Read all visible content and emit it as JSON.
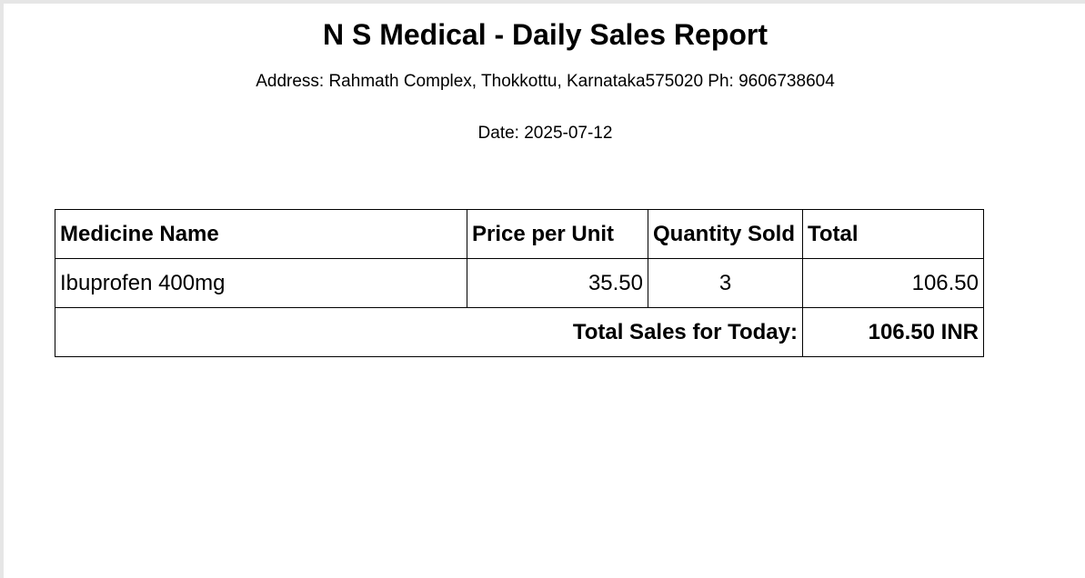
{
  "report": {
    "title": "N S Medical - Daily Sales Report",
    "address": "Address: Rahmath Complex, Thokkottu, Karnataka575020 Ph: 9606738604",
    "date": "Date: 2025-07-12"
  },
  "table": {
    "headers": [
      "Medicine Name",
      "Price per Unit",
      "Quantity Sold",
      "Total"
    ],
    "rows": [
      {
        "name": "Ibuprofen 400mg",
        "price": "35.50",
        "quantity": "3",
        "total": "106.50"
      }
    ],
    "footer": {
      "label": "Total Sales for Today:",
      "value": "106.50 INR"
    }
  }
}
